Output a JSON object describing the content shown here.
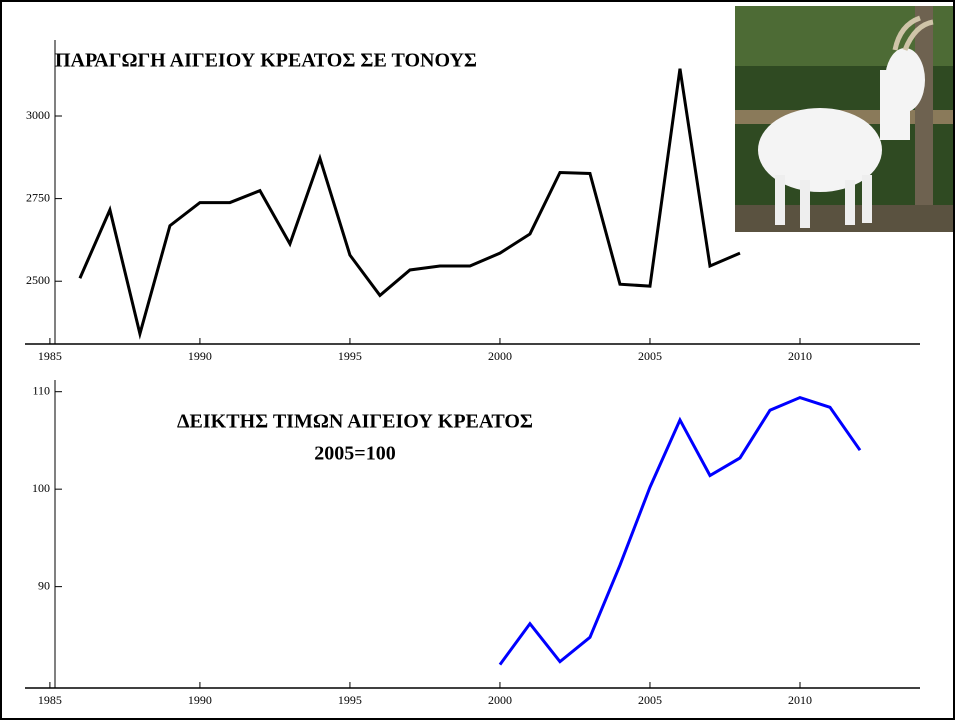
{
  "chart_data": [
    {
      "type": "line",
      "title": "ΠΑΡΑΓΩΓΗ ΑΙΓΕΙΟΥ ΚΡΕΑΤΟΣ ΣΕ ΤΟΝΟΥΣ",
      "x": [
        1986,
        1987,
        1988,
        1989,
        1990,
        1991,
        1992,
        1993,
        1994,
        1995,
        1996,
        1997,
        1998,
        1999,
        2000,
        2001,
        2002,
        2003,
        2004,
        2005,
        2006,
        2007,
        2008
      ],
      "series": [
        {
          "color": "#000000",
          "values": [
            2509,
            2716,
            2341,
            2668,
            2738,
            2738,
            2774,
            2613,
            2872,
            2579,
            2457,
            2534,
            2546,
            2546,
            2585,
            2643,
            2829,
            2826,
            2491,
            2485,
            3143,
            2546,
            2585
          ]
        }
      ],
      "xlim": [
        1984.17,
        2014
      ],
      "xticks": [
        1985,
        1990,
        1995,
        2000,
        2005,
        2010
      ],
      "ylim": [
        2310,
        3230
      ],
      "yticks": [
        2500,
        2750,
        3000
      ]
    },
    {
      "type": "line",
      "title": "ΔΕΙΚΤΗΣ ΤΙΜΩΝ ΑΙΓΕΙΟΥ ΚΡΕΑΤΟΣ",
      "subtitle": "2005=100",
      "x": [
        2000,
        2001,
        2002,
        2003,
        2004,
        2005,
        2006,
        2007,
        2008,
        2009,
        2010,
        2011,
        2012
      ],
      "series": [
        {
          "color": "#0000ff",
          "values": [
            82.0,
            86.2,
            82.3,
            84.8,
            92.2,
            100.2,
            107.1,
            101.4,
            103.2,
            108.1,
            109.4,
            108.4,
            104.0
          ]
        }
      ],
      "xlim": [
        1984.17,
        2014
      ],
      "xticks": [
        1985,
        1990,
        1995,
        2000,
        2005,
        2010
      ],
      "ylim": [
        79.6,
        111.2
      ],
      "yticks": [
        90,
        100,
        110
      ]
    }
  ]
}
